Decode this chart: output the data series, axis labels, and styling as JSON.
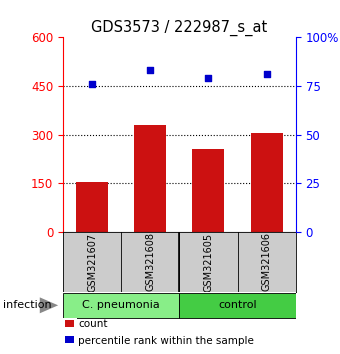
{
  "title": "GDS3573 / 222987_s_at",
  "samples": [
    "GSM321607",
    "GSM321608",
    "GSM321605",
    "GSM321606"
  ],
  "bar_values": [
    155,
    330,
    255,
    305
  ],
  "pct_values": [
    76,
    83,
    79,
    81
  ],
  "left_ylim": [
    0,
    600
  ],
  "right_ylim": [
    0,
    100
  ],
  "left_yticks": [
    0,
    150,
    300,
    450,
    600
  ],
  "right_yticks": [
    0,
    25,
    50,
    75,
    100
  ],
  "right_yticklabels": [
    "0",
    "25",
    "50",
    "75",
    "100%"
  ],
  "dotted_lines": [
    150,
    300,
    450
  ],
  "bar_color": "#cc1111",
  "dot_color": "#0000cc",
  "groups": [
    {
      "label": "C. pneumonia",
      "indices": [
        0,
        1
      ],
      "color": "#88ee88"
    },
    {
      "label": "control",
      "indices": [
        2,
        3
      ],
      "color": "#44cc44"
    }
  ],
  "group_row_label": "infection",
  "legend_items": [
    {
      "color": "#cc1111",
      "label": "count"
    },
    {
      "color": "#0000cc",
      "label": "percentile rank within the sample"
    }
  ],
  "bar_width": 0.55,
  "background_color": "#ffffff",
  "plot_bg": "#ffffff",
  "label_area_bg": "#cccccc"
}
